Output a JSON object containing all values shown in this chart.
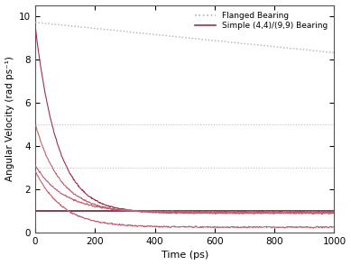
{
  "title": "",
  "xlabel": "Time (ps)",
  "ylabel": "Angular Velocity (rad ps⁻¹)",
  "xlim": [
    0,
    1000
  ],
  "ylim": [
    0,
    10.5
  ],
  "yticks": [
    0,
    2,
    4,
    6,
    8,
    10
  ],
  "xticks": [
    0,
    200,
    400,
    600,
    800,
    1000
  ],
  "flanged_color": "#b0b0b0",
  "simple_color": "#A0304A",
  "simple_color_light": "#C06070",
  "hline_color": "#c0c0c0",
  "hline_solid_color": "#7B1832",
  "legend_labels": [
    "Flanged Bearing",
    "Simple (4,4)/(9,9) Bearing"
  ],
  "flanged_start": 9.7,
  "flanged_end": 8.3,
  "hlines_y": [
    5.0,
    3.0
  ],
  "hline_solid_y": 1.0,
  "background_color": "#ffffff"
}
